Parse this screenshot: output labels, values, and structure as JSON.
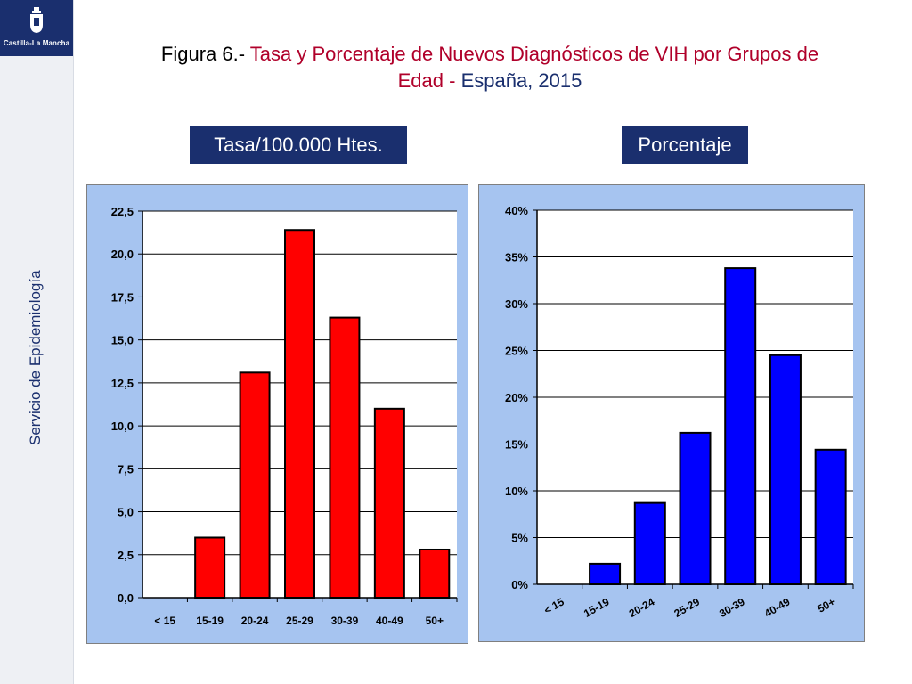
{
  "logo": {
    "text": "Castilla-La Mancha",
    "emblem": "coat-of-arms-icon"
  },
  "sidebar": {
    "label": "Servicio de Epidemiología"
  },
  "title": {
    "prefix": "Figura 6.-",
    "part1": " Tasa y Porcentaje de Nuevos Diagnósticos de VIH por Grupos de",
    "part2": "Edad -",
    "part3": " España, 2015"
  },
  "badges": {
    "left": "Tasa/100.000 Htes.",
    "right": "Porcentaje"
  },
  "colors": {
    "navy": "#1a2f6e",
    "red_bar": "#ff0000",
    "blue_bar": "#0000ff",
    "frame_bg": "#a6c4f0"
  },
  "chart_data": [
    {
      "type": "bar",
      "categories": [
        "< 15",
        "15-19",
        "20-24",
        "25-29",
        "30-39",
        "40-49",
        "50+"
      ],
      "values": [
        0,
        3.5,
        13.1,
        21.4,
        16.3,
        11.0,
        2.8
      ],
      "ylim": [
        0,
        22.5
      ],
      "yticks": [
        "0,0",
        "2,5",
        "5,0",
        "7,5",
        "10,0",
        "12,5",
        "15,0",
        "17,5",
        "20,0",
        "22,5"
      ],
      "title": "",
      "xlabel": "",
      "ylabel": "",
      "grid": true
    },
    {
      "type": "bar",
      "categories": [
        "< 15",
        "15-19",
        "20-24",
        "25-29",
        "30-39",
        "40-49",
        "50+"
      ],
      "values": [
        0,
        2.2,
        8.7,
        16.2,
        33.8,
        24.5,
        14.4
      ],
      "ylim": [
        0,
        40
      ],
      "yticks": [
        "0%",
        "5%",
        "10%",
        "15%",
        "20%",
        "25%",
        "30%",
        "35%",
        "40%"
      ],
      "title": "",
      "xlabel": "",
      "ylabel": "",
      "grid": true
    }
  ]
}
